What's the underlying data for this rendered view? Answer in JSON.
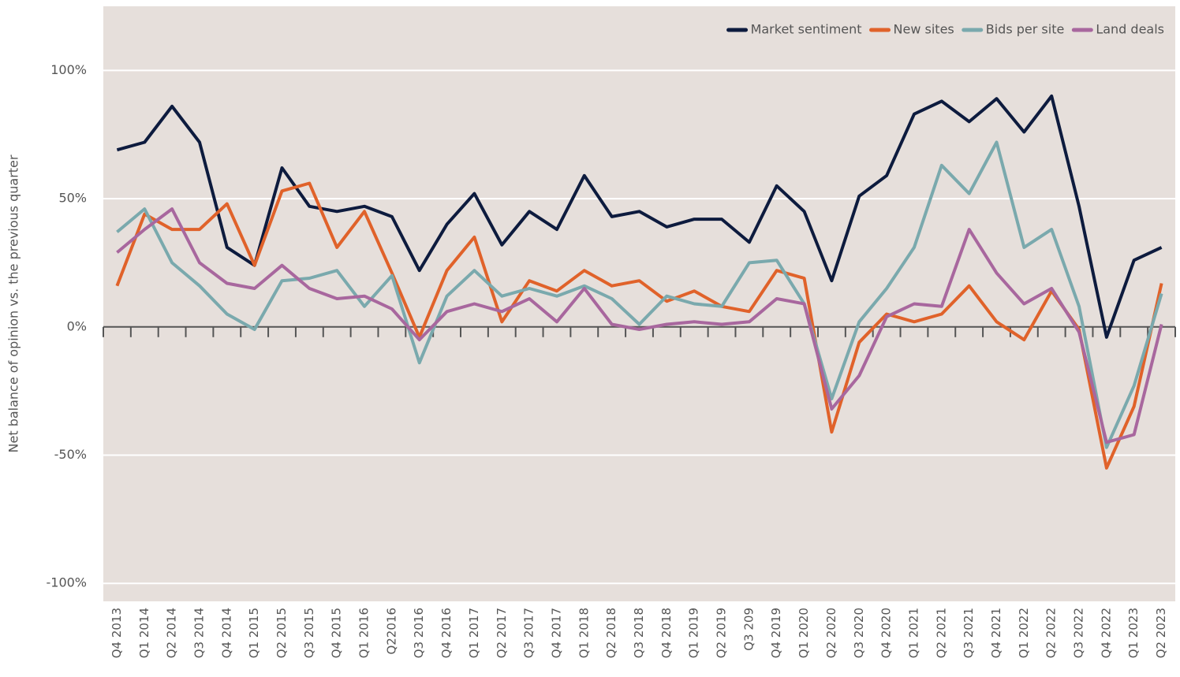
{
  "chart_data": {
    "type": "line",
    "y_label": "Net balance of opinion vs. the previous quarter",
    "categories": [
      "Q4 2013",
      "Q1 2014",
      "Q2 2014",
      "Q3 2014",
      "Q4 2014",
      "Q1 2015",
      "Q2 2015",
      "Q3 2015",
      "Q4 2015",
      "Q1 2016",
      "Q22016",
      "Q3 2016",
      "Q4 2016",
      "Q1 2017",
      "Q2 2017",
      "Q3 2017",
      "Q4 2017",
      "Q1 2018",
      "Q2 2018",
      "Q3 2018",
      "Q4 2018",
      "Q1 2019",
      "Q2 2019",
      "Q3 209",
      "Q4 2019",
      "Q1 2020",
      "Q2 2020",
      "Q3 2020",
      "Q4 2020",
      "Q1 2021",
      "Q2 2021",
      "Q3 2021",
      "Q4 2021",
      "Q1 2022",
      "Q2 2022",
      "Q3 2022",
      "Q4 2022",
      "Q1 2023",
      "Q2 2023"
    ],
    "series": [
      {
        "name": "Market sentiment",
        "color": "#0d1b3e",
        "values": [
          69,
          72,
          86,
          72,
          31,
          24,
          62,
          47,
          45,
          47,
          43,
          22,
          40,
          52,
          32,
          45,
          38,
          59,
          43,
          45,
          39,
          42,
          42,
          33,
          55,
          45,
          18,
          51,
          59,
          83,
          88,
          80,
          89,
          76,
          90,
          47,
          -4,
          26,
          31
        ]
      },
      {
        "name": "New sites",
        "color": "#e0622a",
        "values": [
          16,
          44,
          38,
          38,
          48,
          24,
          53,
          56,
          31,
          45,
          21,
          -4,
          22,
          35,
          2,
          18,
          14,
          22,
          16,
          18,
          10,
          14,
          8,
          6,
          22,
          19,
          -41,
          -6,
          5,
          2,
          5,
          16,
          2,
          -5,
          14,
          -1,
          -55,
          -31,
          17
        ]
      },
      {
        "name": "Bids per site",
        "color": "#7aa9ad",
        "values": [
          37,
          46,
          25,
          16,
          5,
          -1,
          18,
          19,
          22,
          8,
          20,
          -14,
          12,
          22,
          12,
          15,
          12,
          16,
          11,
          1,
          12,
          9,
          8,
          25,
          26,
          9,
          -28,
          2,
          15,
          31,
          63,
          52,
          72,
          31,
          38,
          8,
          -47,
          -23,
          13
        ]
      },
      {
        "name": "Land deals",
        "color": "#a8679e",
        "values": [
          29,
          38,
          46,
          25,
          17,
          15,
          24,
          15,
          11,
          12,
          7,
          -5,
          6,
          9,
          6,
          11,
          2,
          15,
          1,
          -1,
          1,
          2,
          1,
          2,
          11,
          9,
          -32,
          -19,
          4,
          9,
          8,
          38,
          21,
          9,
          15,
          -2,
          -45,
          -42,
          1
        ]
      }
    ],
    "ylim": [
      -107,
      125
    ],
    "yticks": [
      {
        "value": -100,
        "label": "-100%"
      },
      {
        "value": -50,
        "label": "-50%"
      },
      {
        "value": 0,
        "label": "0%"
      },
      {
        "value": 50,
        "label": "50%"
      },
      {
        "value": 100,
        "label": "100%"
      }
    ],
    "grid": true,
    "legend": "upper right"
  }
}
